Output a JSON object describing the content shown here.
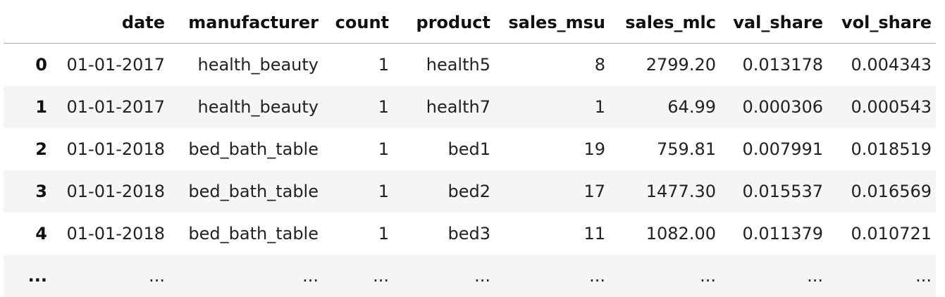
{
  "table": {
    "columns": [
      "",
      "date",
      "manufacturer",
      "count",
      "product",
      "sales_msu",
      "sales_mlc",
      "val_share",
      "vol_share"
    ],
    "rows": [
      {
        "index": "0",
        "cells": [
          "01-01-2017",
          "health_beauty",
          "1",
          "health5",
          "8",
          "2799.20",
          "0.013178",
          "0.004343"
        ]
      },
      {
        "index": "1",
        "cells": [
          "01-01-2017",
          "health_beauty",
          "1",
          "health7",
          "1",
          "64.99",
          "0.000306",
          "0.000543"
        ]
      },
      {
        "index": "2",
        "cells": [
          "01-01-2018",
          "bed_bath_table",
          "1",
          "bed1",
          "19",
          "759.81",
          "0.007991",
          "0.018519"
        ]
      },
      {
        "index": "3",
        "cells": [
          "01-01-2018",
          "bed_bath_table",
          "1",
          "bed2",
          "17",
          "1477.30",
          "0.015537",
          "0.016569"
        ]
      },
      {
        "index": "4",
        "cells": [
          "01-01-2018",
          "bed_bath_table",
          "1",
          "bed3",
          "11",
          "1082.00",
          "0.011379",
          "0.010721"
        ]
      },
      {
        "index": "...",
        "cells": [
          "...",
          "...",
          "...",
          "...",
          "...",
          "...",
          "...",
          "..."
        ]
      }
    ]
  }
}
